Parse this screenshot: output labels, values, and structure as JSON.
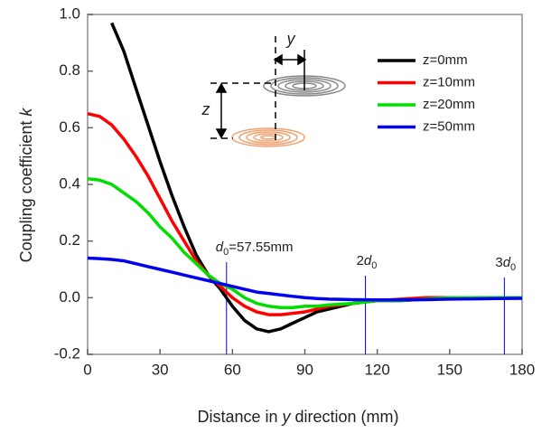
{
  "chart_data": {
    "type": "line",
    "xlabel": [
      "Distance in ",
      "y",
      " direction (mm)"
    ],
    "ylabel": [
      "Coupling coefficient ",
      "k"
    ],
    "x": [
      0,
      5,
      10,
      15,
      20,
      25,
      30,
      35,
      40,
      45,
      50,
      55,
      60,
      65,
      70,
      75,
      80,
      85,
      90,
      95,
      100,
      110,
      120,
      130,
      140,
      150,
      160,
      170,
      180
    ],
    "series": [
      {
        "name": "z=0mm",
        "color": "#000000",
        "values": [
          null,
          null,
          0.97,
          0.87,
          0.74,
          0.61,
          0.48,
          0.36,
          0.25,
          0.15,
          0.08,
          0.03,
          -0.03,
          -0.08,
          -0.11,
          -0.12,
          -0.11,
          -0.09,
          -0.07,
          -0.05,
          -0.04,
          -0.02,
          -0.01,
          -0.01,
          -0.005,
          0,
          0,
          0,
          0
        ]
      },
      {
        "name": "z=10mm",
        "color": "#ff0000",
        "values": [
          0.65,
          0.64,
          0.61,
          0.56,
          0.5,
          0.43,
          0.35,
          0.27,
          0.2,
          0.13,
          0.08,
          0.04,
          0.0,
          -0.03,
          -0.05,
          -0.06,
          -0.06,
          -0.055,
          -0.05,
          -0.04,
          -0.03,
          -0.02,
          -0.01,
          -0.005,
          0,
          0,
          0,
          0,
          0
        ]
      },
      {
        "name": "z=20mm",
        "color": "#00dd00",
        "values": [
          0.42,
          0.415,
          0.4,
          0.37,
          0.34,
          0.3,
          0.25,
          0.21,
          0.16,
          0.12,
          0.08,
          0.05,
          0.03,
          0.0,
          -0.02,
          -0.03,
          -0.035,
          -0.035,
          -0.03,
          -0.03,
          -0.025,
          -0.02,
          -0.01,
          -0.01,
          -0.005,
          0,
          0,
          0,
          0
        ]
      },
      {
        "name": "z=50mm",
        "color": "#0000ee",
        "values": [
          0.14,
          0.138,
          0.135,
          0.13,
          0.12,
          0.11,
          0.1,
          0.09,
          0.08,
          0.07,
          0.06,
          0.05,
          0.04,
          0.03,
          0.02,
          0.015,
          0.01,
          0.005,
          0.0,
          -0.003,
          -0.005,
          -0.007,
          -0.008,
          -0.008,
          -0.007,
          -0.005,
          -0.004,
          -0.003,
          -0.002
        ]
      }
    ],
    "xlim": [
      0,
      180
    ],
    "ylim": [
      -0.2,
      1.0
    ],
    "xticks": [
      0,
      30,
      60,
      90,
      120,
      150,
      180
    ],
    "yticks": [
      -0.2,
      {
        "value": 0,
        "label": "0.0"
      },
      0.2,
      0.4,
      0.6,
      0.8,
      {
        "value": 1,
        "label": "1.0"
      }
    ],
    "annotations": [
      {
        "x": 57.55,
        "label": [
          "d",
          "0",
          "=57.55mm"
        ]
      },
      {
        "x": 115.1,
        "label": [
          "2",
          "d",
          "0"
        ]
      },
      {
        "x": 172.65,
        "label": [
          "3",
          "d",
          "0"
        ]
      }
    ],
    "inset_labels": [
      "y",
      "z"
    ],
    "legend": "upper right"
  }
}
